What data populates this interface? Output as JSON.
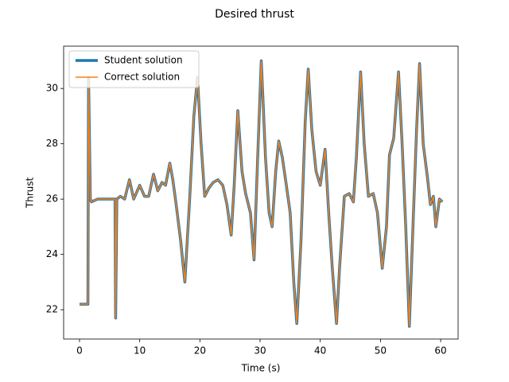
{
  "chart_data": {
    "type": "line",
    "title": "Desired thrust",
    "xlabel": "Time (s)",
    "ylabel": "Thrust",
    "x": [
      0,
      1.4,
      1.5,
      1.8,
      2,
      3,
      5.5,
      5.9,
      6.0,
      6.2,
      6.8,
      7.5,
      8.3,
      9,
      10,
      10.8,
      11.5,
      12.3,
      13,
      13.7,
      14.3,
      15,
      15.5,
      16,
      16.8,
      17.5,
      18.3,
      19,
      19.6,
      20.2,
      20.8,
      21.5,
      22.2,
      23,
      23.8,
      24.5,
      25.2,
      25.7,
      26.3,
      27,
      27.6,
      28.4,
      29,
      29.6,
      30.2,
      30.9,
      31.5,
      32,
      32.6,
      33.1,
      33.7,
      34.3,
      35,
      35.6,
      36.1,
      36.8,
      37.5,
      38,
      38.6,
      39.3,
      40,
      40.8,
      41.4,
      42,
      42.7,
      43.2,
      44,
      44.8,
      45.5,
      46,
      46.7,
      47.3,
      48,
      48.8,
      49.5,
      50.3,
      51,
      51.5,
      52.2,
      53,
      53.6,
      54.2,
      54.8,
      55.4,
      56,
      56.5,
      57.1,
      57.8,
      58.3,
      58.8,
      59.2,
      59.8,
      60.3
    ],
    "series": [
      {
        "name": "Student solution",
        "color": "#1f77b4",
        "width": 3.5,
        "values": [
          22.2,
          22.2,
          30.4,
          26.0,
          25.9,
          26.0,
          26.0,
          26.0,
          21.7,
          26.0,
          26.1,
          26.0,
          26.7,
          26.0,
          26.5,
          26.1,
          26.1,
          26.9,
          26.3,
          26.6,
          26.5,
          27.3,
          26.7,
          25.9,
          24.5,
          23.0,
          26.0,
          29.0,
          30.4,
          28.0,
          26.1,
          26.4,
          26.6,
          26.7,
          26.5,
          25.8,
          24.7,
          26.5,
          29.2,
          27.0,
          26.2,
          25.5,
          23.8,
          27.5,
          31.0,
          27.5,
          25.5,
          25.0,
          27.0,
          28.1,
          27.5,
          26.6,
          25.5,
          23.0,
          21.5,
          24.5,
          28.8,
          30.7,
          28.5,
          27.0,
          26.5,
          27.8,
          25.5,
          23.5,
          21.5,
          23.5,
          26.1,
          26.2,
          25.9,
          27.5,
          30.6,
          28.0,
          26.1,
          26.2,
          25.5,
          23.5,
          25.0,
          27.6,
          28.2,
          30.6,
          28.0,
          25.0,
          21.4,
          25.0,
          28.5,
          30.9,
          28.0,
          26.8,
          25.8,
          26.1,
          25.0,
          26.0,
          25.9
        ]
      },
      {
        "name": "Correct solution",
        "color": "#ff7f0e",
        "width": 1.5,
        "values": [
          22.2,
          22.2,
          30.4,
          26.0,
          25.9,
          26.0,
          26.0,
          26.0,
          21.7,
          26.0,
          26.1,
          26.0,
          26.7,
          26.0,
          26.5,
          26.1,
          26.1,
          26.9,
          26.3,
          26.6,
          26.5,
          27.3,
          26.7,
          25.9,
          24.5,
          23.0,
          26.0,
          29.0,
          30.4,
          28.0,
          26.1,
          26.4,
          26.6,
          26.7,
          26.5,
          25.8,
          24.7,
          26.5,
          29.2,
          27.0,
          26.2,
          25.5,
          23.8,
          27.5,
          31.0,
          27.5,
          25.5,
          25.0,
          27.0,
          28.1,
          27.5,
          26.6,
          25.5,
          23.0,
          21.5,
          24.5,
          28.8,
          30.7,
          28.5,
          27.0,
          26.5,
          27.8,
          25.5,
          23.5,
          21.5,
          23.5,
          26.1,
          26.2,
          25.9,
          27.5,
          30.6,
          28.0,
          26.1,
          26.2,
          25.5,
          23.5,
          25.0,
          27.6,
          28.2,
          30.6,
          28.0,
          25.0,
          21.4,
          25.0,
          28.5,
          30.9,
          28.0,
          26.8,
          25.8,
          26.1,
          25.0,
          26.0,
          25.9
        ]
      }
    ],
    "xlim": [
      -2.64,
      62.9
    ],
    "ylim": [
      20.94,
      31.53
    ],
    "xticks": [
      0,
      10,
      20,
      30,
      40,
      50,
      60
    ],
    "yticks": [
      22,
      24,
      26,
      28,
      30
    ],
    "legend": "upper left",
    "grid": false
  }
}
